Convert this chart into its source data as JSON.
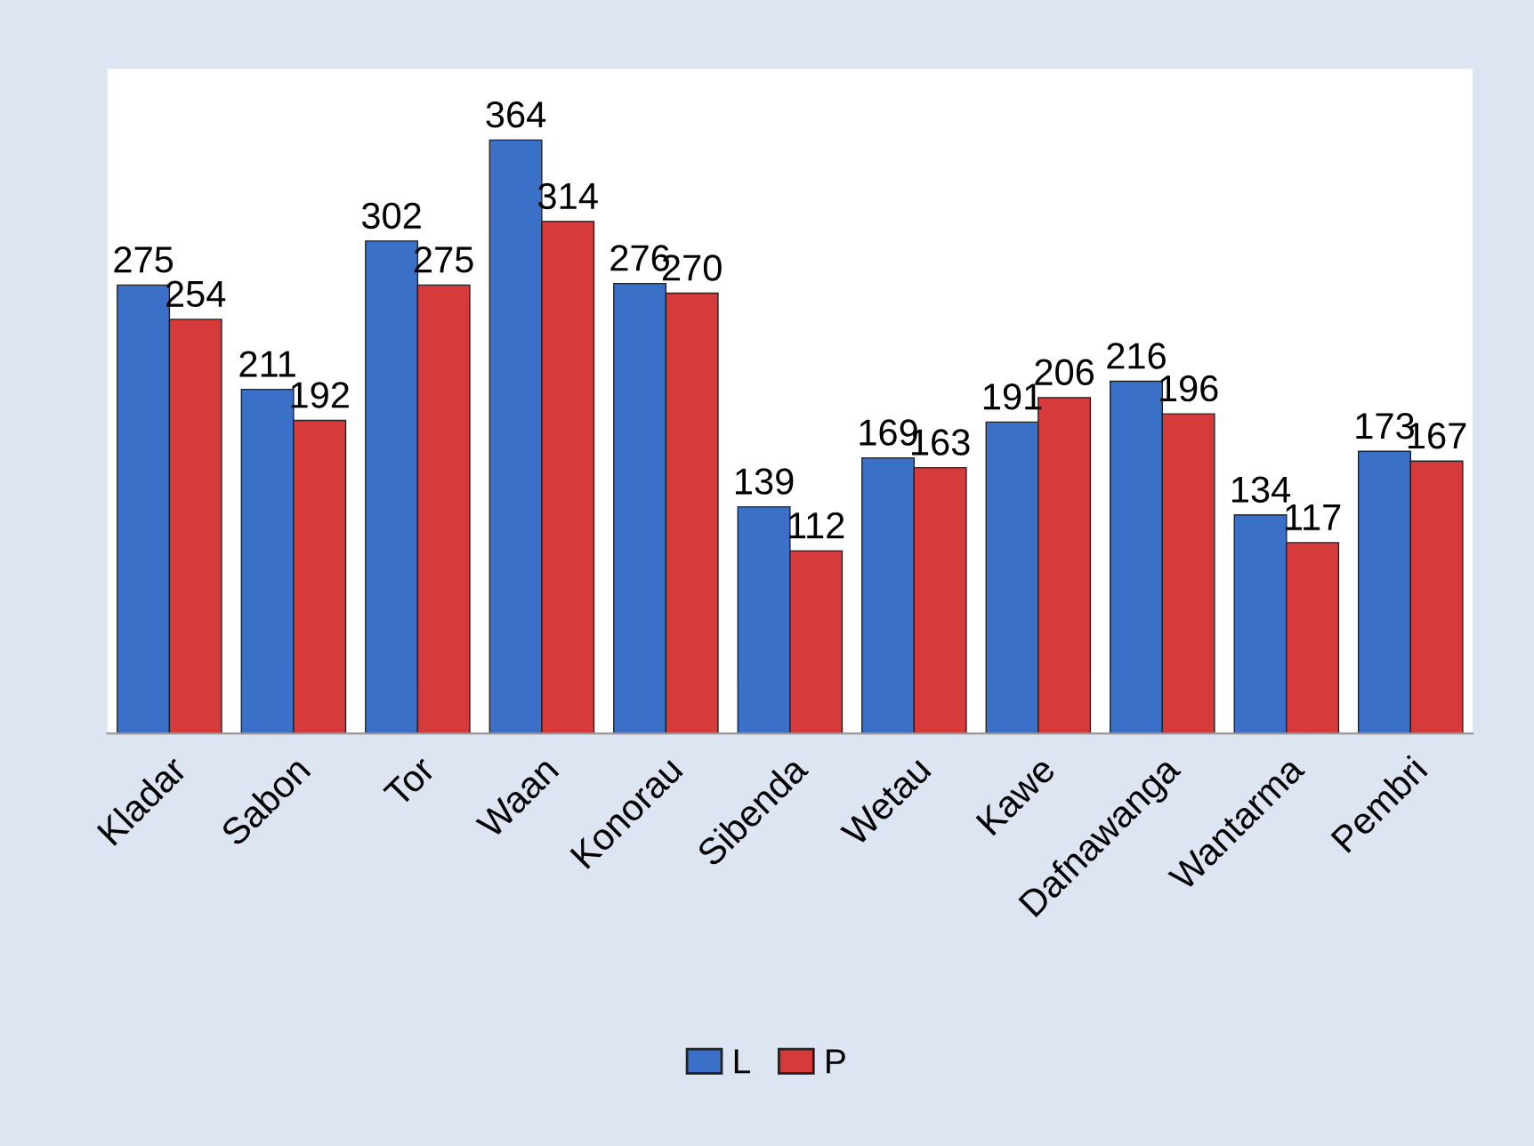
{
  "chart_data": {
    "type": "bar",
    "categories": [
      "Kladar",
      "Sabon",
      "Tor",
      "Waan",
      "Konorau",
      "Sibenda",
      "Wetau",
      "Kawe",
      "Dafnawanga",
      "Wantarma",
      "Pembri"
    ],
    "series": [
      {
        "name": "L",
        "color": "#3a70c8",
        "values": [
          275,
          211,
          302,
          364,
          276,
          139,
          169,
          191,
          216,
          134,
          173
        ]
      },
      {
        "name": "P",
        "color": "#d63a3a",
        "values": [
          254,
          192,
          275,
          314,
          270,
          112,
          163,
          206,
          196,
          117,
          167
        ]
      }
    ],
    "data_labels": true,
    "grid": false,
    "legend": "bottom"
  }
}
